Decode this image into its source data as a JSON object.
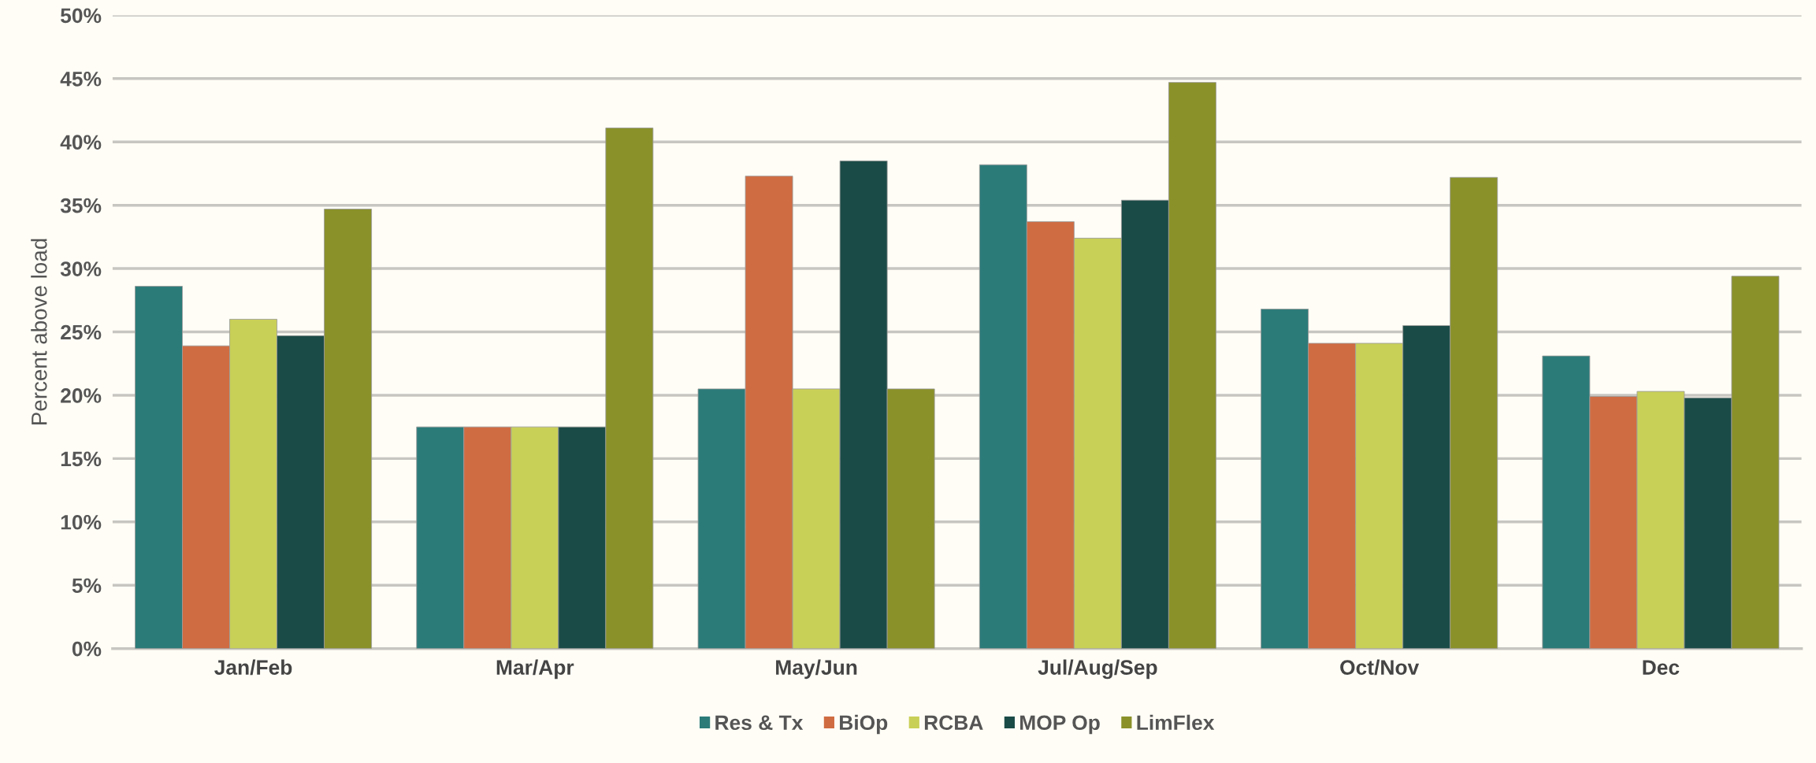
{
  "chart_data": {
    "type": "bar",
    "ylabel": "Percent above load",
    "categories": [
      "Jan/Feb",
      "Mar/Apr",
      "May/Jun",
      "Jul/Aug/Sep",
      "Oct/Nov",
      "Dec"
    ],
    "series": [
      {
        "name": "Res & Tx",
        "color": "#2b7b79",
        "values": [
          28.6,
          17.5,
          20.5,
          38.2,
          26.8,
          23.1
        ]
      },
      {
        "name": "BiOp",
        "color": "#d06c42",
        "values": [
          23.9,
          17.5,
          37.3,
          33.7,
          24.1,
          19.9
        ]
      },
      {
        "name": "RCBA",
        "color": "#c9d057",
        "values": [
          26.0,
          17.5,
          20.5,
          32.4,
          24.1,
          20.3
        ]
      },
      {
        "name": "MOP Op",
        "color": "#1b4b47",
        "values": [
          24.7,
          17.5,
          38.5,
          35.4,
          25.5,
          19.8
        ]
      },
      {
        "name": "LimFlex",
        "color": "#8a9129",
        "values": [
          34.7,
          41.1,
          20.5,
          44.7,
          37.2,
          29.4
        ]
      }
    ],
    "ylim": [
      0,
      50
    ],
    "yticks": [
      {
        "value": 0,
        "label": "0%"
      },
      {
        "value": 5,
        "label": "5%"
      },
      {
        "value": 10,
        "label": "10%"
      },
      {
        "value": 15,
        "label": "15%"
      },
      {
        "value": 20,
        "label": "20%"
      },
      {
        "value": 25,
        "label": "25%"
      },
      {
        "value": 30,
        "label": "30%"
      },
      {
        "value": 35,
        "label": "35%"
      },
      {
        "value": 40,
        "label": "40%"
      },
      {
        "value": 45,
        "label": "45%"
      },
      {
        "value": 50,
        "label": "50%"
      }
    ],
    "grid": "y",
    "legend": "bottom"
  }
}
